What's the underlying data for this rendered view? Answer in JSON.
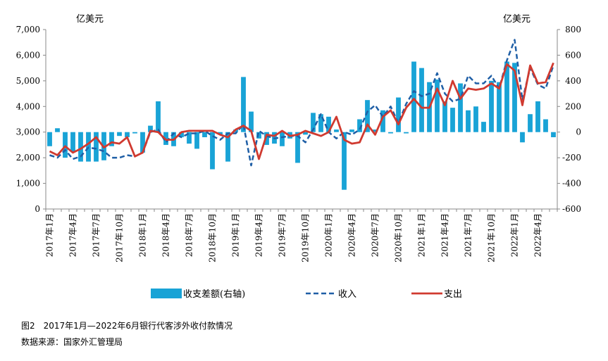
{
  "chart_data": {
    "type": "bar+line",
    "unit_left": "亿美元",
    "unit_right": "亿美元",
    "y_left": {
      "min": 0,
      "max": 7000,
      "ticks": [
        "0",
        "1,000",
        "2,000",
        "3,000",
        "4,000",
        "5,000",
        "6,000",
        "7,000"
      ]
    },
    "y_right": {
      "min": -600,
      "max": 800,
      "ticks": [
        "-600",
        "-400",
        "-200",
        "0",
        "200",
        "400",
        "600",
        "800"
      ]
    },
    "x_tick_labels": [
      "2017年1月",
      "2017年4月",
      "2017年7月",
      "2017年10月",
      "2018年1月",
      "2018年4月",
      "2018年7月",
      "2018年10月",
      "2019年1月",
      "2019年4月",
      "2019年7月",
      "2019年10月",
      "2020年1月",
      "2020年4月",
      "2020年7月",
      "2020年10月",
      "2021年1月",
      "2021年4月",
      "2021年7月",
      "2021年10月",
      "2022年1月",
      "2022年4月"
    ],
    "months": [
      "2017-01",
      "2017-02",
      "2017-03",
      "2017-04",
      "2017-05",
      "2017-06",
      "2017-07",
      "2017-08",
      "2017-09",
      "2017-10",
      "2017-11",
      "2017-12",
      "2018-01",
      "2018-02",
      "2018-03",
      "2018-04",
      "2018-05",
      "2018-06",
      "2018-07",
      "2018-08",
      "2018-09",
      "2018-10",
      "2018-11",
      "2018-12",
      "2019-01",
      "2019-02",
      "2019-03",
      "2019-04",
      "2019-05",
      "2019-06",
      "2019-07",
      "2019-08",
      "2019-09",
      "2019-10",
      "2019-11",
      "2019-12",
      "2020-01",
      "2020-02",
      "2020-03",
      "2020-04",
      "2020-05",
      "2020-06",
      "2020-07",
      "2020-08",
      "2020-09",
      "2020-10",
      "2020-11",
      "2020-12",
      "2021-01",
      "2021-02",
      "2021-03",
      "2021-04",
      "2021-05",
      "2021-06",
      "2021-07",
      "2021-08",
      "2021-09",
      "2021-10",
      "2021-11",
      "2021-12",
      "2022-01",
      "2022-02",
      "2022-03",
      "2022-04",
      "2022-05",
      "2022-06"
    ],
    "series": [
      {
        "name": "收支差额(右轴)",
        "type": "bar",
        "axis": "right",
        "color": "#19a3d6",
        "values": [
          -110,
          30,
          -200,
          -150,
          -230,
          -230,
          -230,
          -220,
          -110,
          -30,
          -40,
          -10,
          -160,
          50,
          240,
          -100,
          -110,
          -40,
          -90,
          -130,
          -40,
          -290,
          -20,
          -230,
          20,
          430,
          160,
          -50,
          -100,
          -90,
          -110,
          -50,
          -240,
          -20,
          150,
          140,
          120,
          20,
          -450,
          20,
          100,
          250,
          20,
          170,
          -10,
          270,
          -10,
          550,
          500,
          390,
          410,
          240,
          190,
          380,
          170,
          200,
          80,
          400,
          390,
          550,
          540,
          -80,
          140,
          240,
          100,
          -40
        ]
      },
      {
        "name": "收入",
        "type": "line",
        "axis": "left",
        "color": "#1f5fa6",
        "dash": true,
        "values": [
          2100,
          2000,
          2300,
          1950,
          2050,
          2400,
          2350,
          2250,
          2000,
          2000,
          2100,
          2050,
          2200,
          3000,
          3100,
          2600,
          2950,
          2800,
          2950,
          2950,
          3050,
          2850,
          2700,
          2950,
          2950,
          3300,
          1700,
          3050,
          2850,
          2750,
          2800,
          2850,
          2850,
          2600,
          3100,
          3700,
          3000,
          2750,
          3000,
          2900,
          3100,
          3800,
          4050,
          3600,
          4000,
          3350,
          4100,
          4600,
          4400,
          4500,
          5300,
          4500,
          4200,
          4300,
          5200,
          4900,
          4900,
          5200,
          4700,
          5800,
          6600,
          4250,
          5500,
          4850,
          4700,
          5600
        ]
      },
      {
        "name": "支出",
        "type": "line",
        "axis": "left",
        "color": "#d03a30",
        "dash": false,
        "values": [
          2250,
          2100,
          2450,
          2200,
          2350,
          2550,
          2800,
          2400,
          2600,
          2550,
          2800,
          2050,
          2200,
          3050,
          3000,
          2700,
          2700,
          3000,
          3050,
          3050,
          3050,
          3050,
          2900,
          2800,
          3100,
          3250,
          3050,
          1950,
          2900,
          2850,
          3050,
          2850,
          2900,
          3050,
          2950,
          2850,
          3000,
          3600,
          2700,
          2550,
          2600,
          3300,
          2900,
          3600,
          3850,
          3300,
          3950,
          4300,
          3950,
          3950,
          4700,
          4050,
          5000,
          4300,
          4700,
          4650,
          4700,
          4900,
          4700,
          5650,
          5400,
          4050,
          5600,
          4900,
          4950,
          5700
        ]
      }
    ],
    "legend_position": "bottom",
    "grid": false
  },
  "caption": {
    "title": "图2　2017年1月—2022年6月银行代客涉外收付款情况",
    "source": "数据来源：国家外汇管理局"
  }
}
